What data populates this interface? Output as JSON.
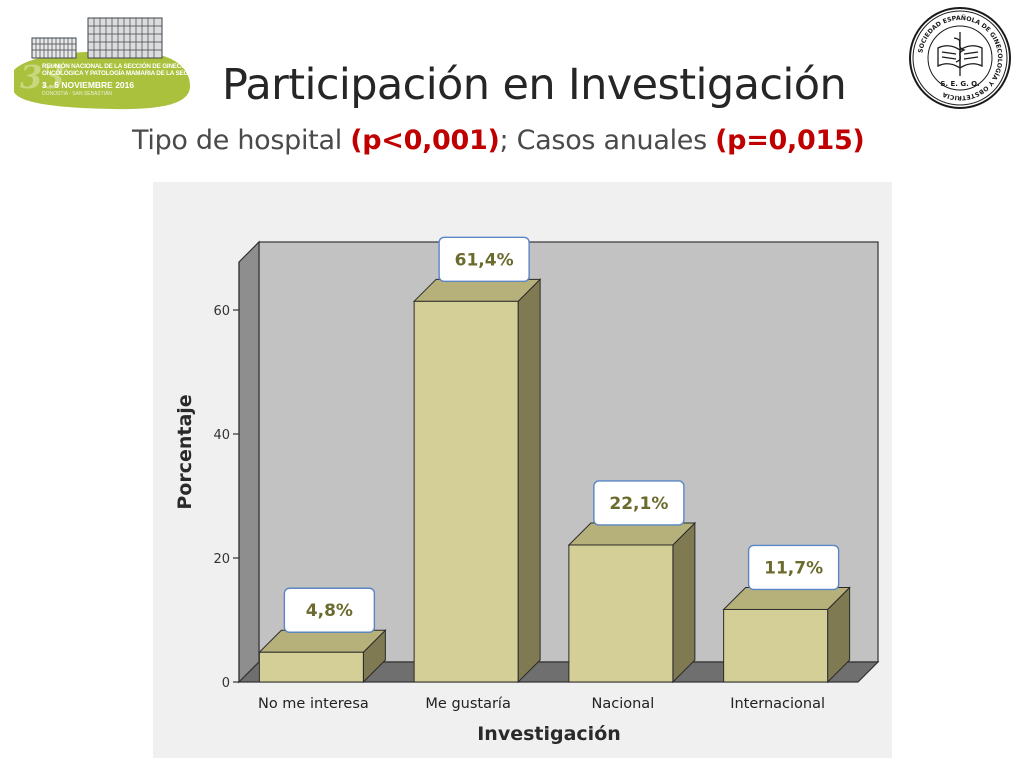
{
  "slide": {
    "title": "Participación en Investigación",
    "subtitle_part1": "Tipo de hospital ",
    "subtitle_p1": "(p<0,001)",
    "subtitle_part2": "; Casos anuales ",
    "subtitle_p2": "(p=0,015)"
  },
  "conference_logo": {
    "number": "33",
    "line1": "REUNIÓN NACIONAL DE LA SECCIÓN DE GINECOLOGÍA",
    "line2": "ONCOLÓGICA Y PATOLOGÍA MAMARIA DE LA SEGO",
    "line3": "3 - 5 NOVIEMBRE 2016",
    "line4": "DONOSTIA · SAN SEBASTIÁN",
    "colors": {
      "leaf": "#a9c13d",
      "building": "#5c6a72"
    }
  },
  "seal": {
    "ring_text": "SOCIEDAD ESPAÑOLA DE GINECOLOGÍA Y OBSTETRICIA",
    "bottom_text": "S. E. G. O."
  },
  "chart_data": {
    "type": "bar",
    "categories": [
      "No me interesa",
      "Me gustaría",
      "Nacional",
      "Internacional"
    ],
    "values": [
      4.8,
      61.4,
      22.1,
      11.7
    ],
    "data_labels": [
      "4,8%",
      "61,4%",
      "22,1%",
      "11,7%"
    ],
    "title": "",
    "xlabel": "Investigación",
    "ylabel": "Porcentaje",
    "ylim": [
      0,
      70
    ],
    "yticks": [
      0,
      20,
      40,
      60
    ],
    "grid": false,
    "colors": {
      "bar_front": "#d4cf96",
      "bar_side": "#807a52",
      "bar_top": "#b6b07a",
      "plot_back": "#c2c2c2",
      "plot_wall": "#8e8e8e",
      "label_border": "#5b86c6"
    }
  }
}
